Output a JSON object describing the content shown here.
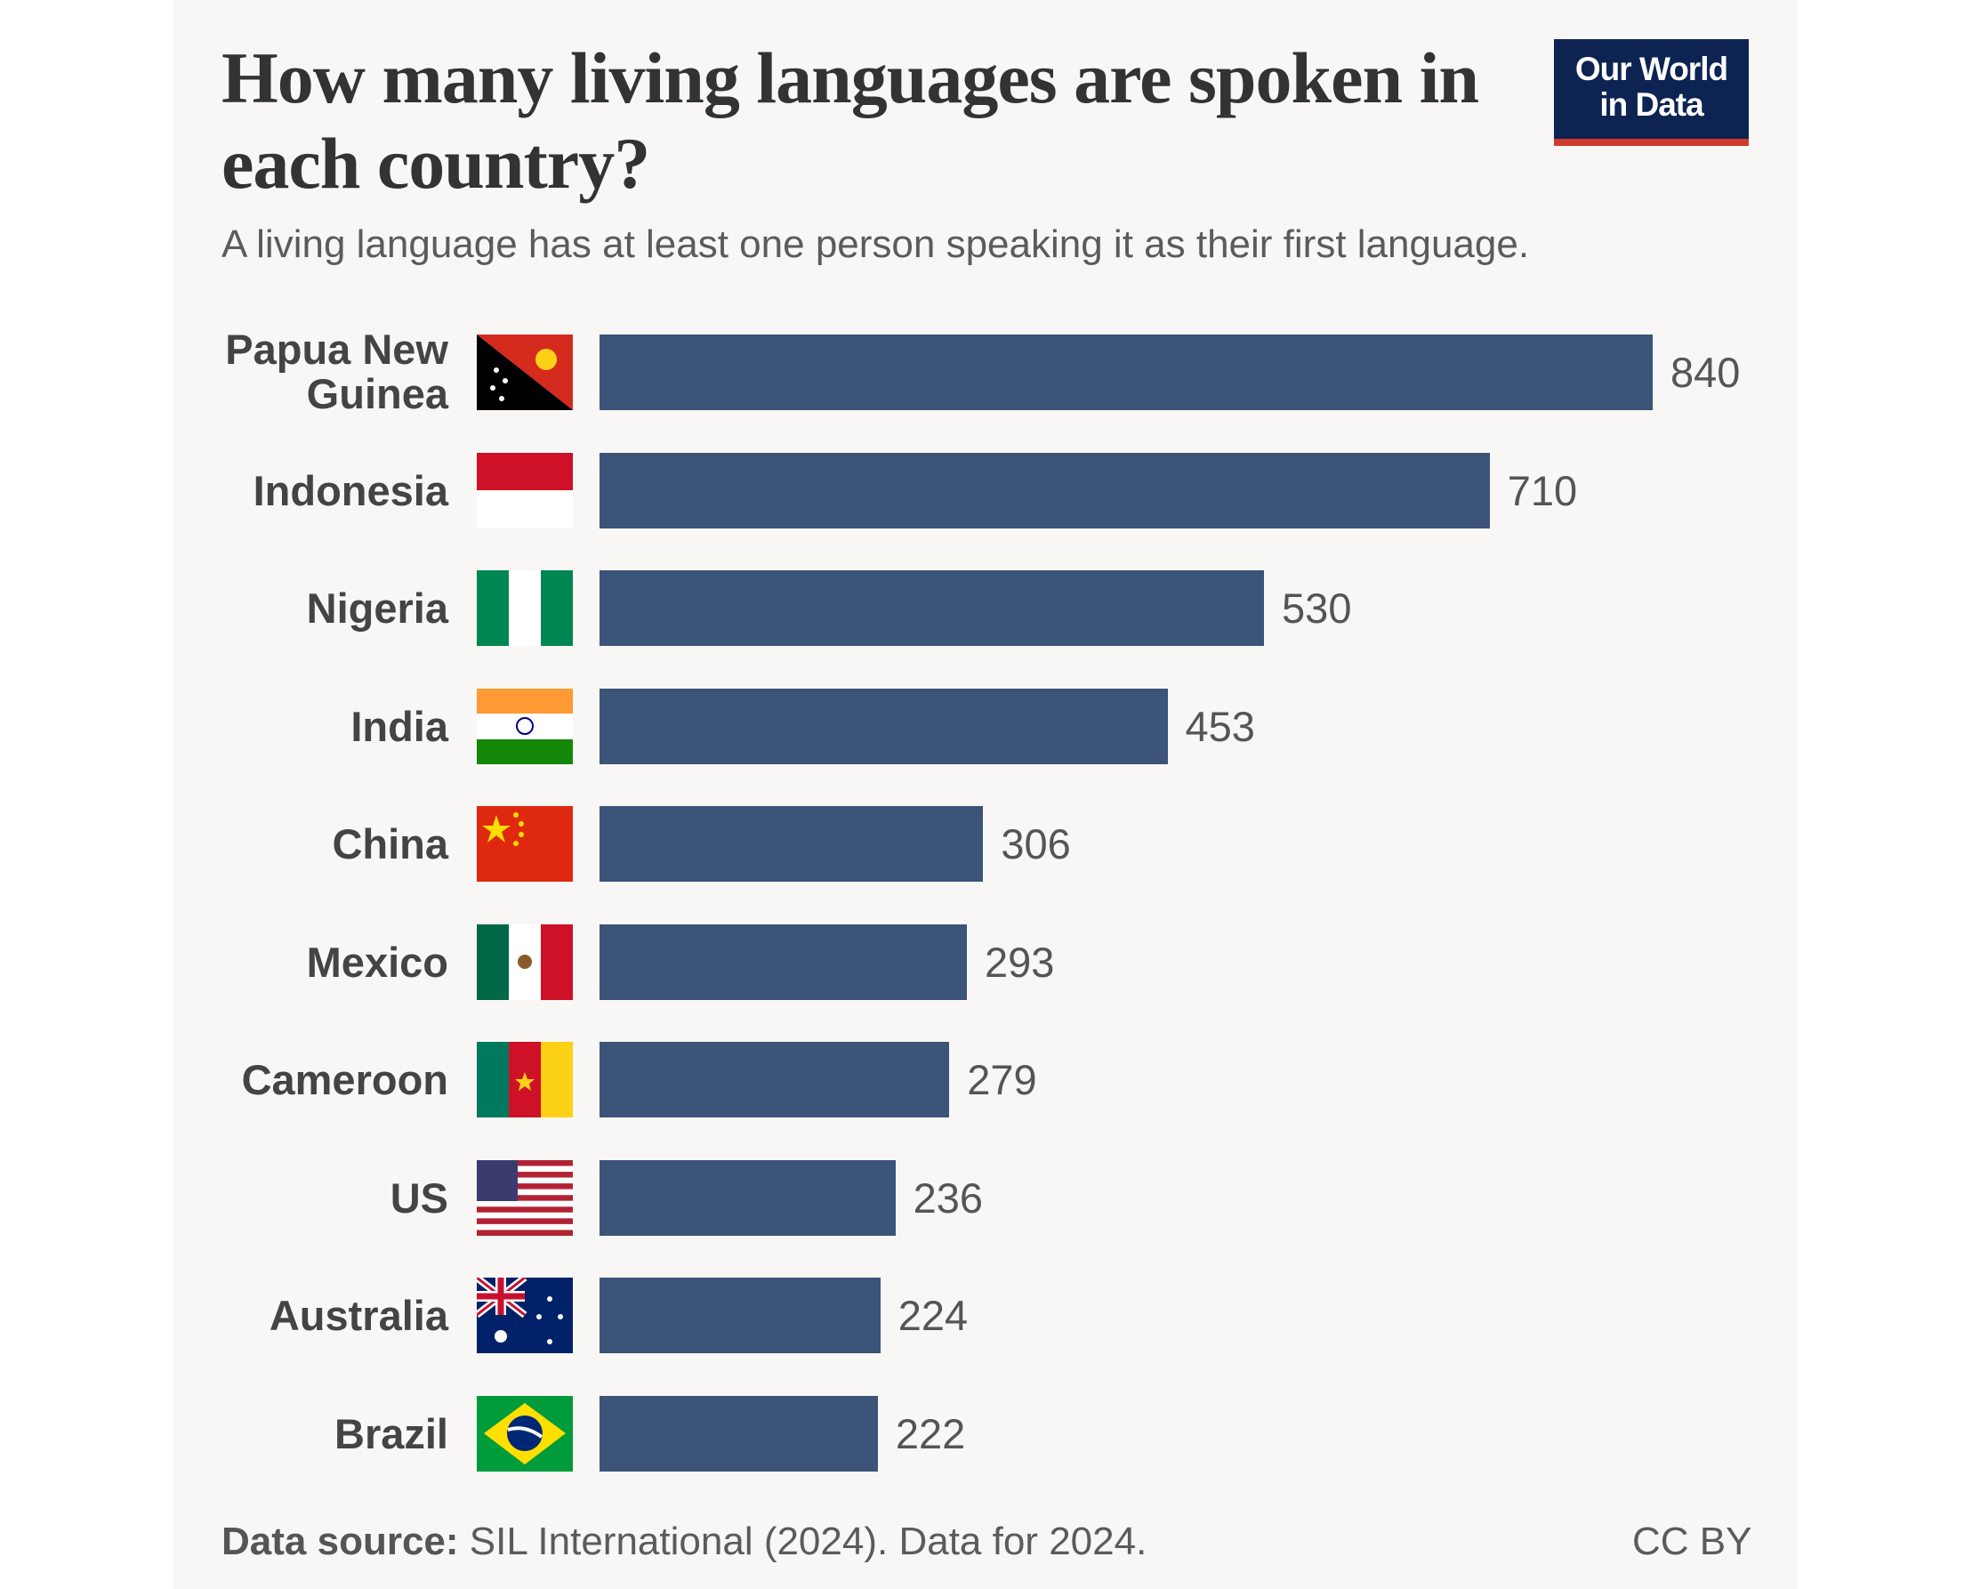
{
  "logo": {
    "line1": "Our World",
    "line2": "in Data"
  },
  "chart_data": {
    "type": "bar",
    "orientation": "horizontal",
    "title": "How many living languages are spoken in each country?",
    "subtitle": "A living language has at least one person speaking it as their first language.",
    "categories": [
      "Papua New Guinea",
      "Indonesia",
      "Nigeria",
      "India",
      "China",
      "Mexico",
      "Cameroon",
      "US",
      "Australia",
      "Brazil"
    ],
    "values": [
      840,
      710,
      530,
      453,
      306,
      293,
      279,
      236,
      224,
      222
    ],
    "xlim": [
      0,
      840
    ],
    "bar_color": "#3b5478",
    "source_label": "Data source:",
    "source": "SIL International (2024). Data for 2024.",
    "license": "CC BY"
  }
}
